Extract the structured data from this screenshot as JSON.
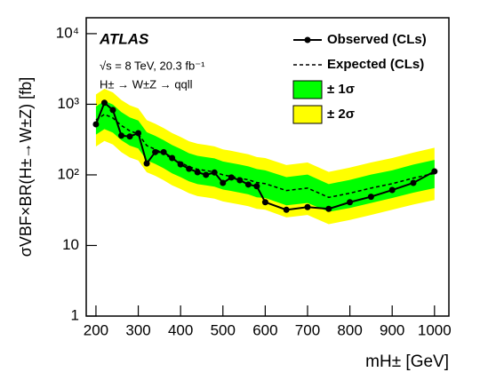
{
  "chart_data": {
    "type": "line",
    "annotations": [
      "ATLAS",
      "√s = 8 TeV,  20.3 fb⁻¹",
      "H± → W±Z → qqll"
    ],
    "xlabel": "mH± [GeV]",
    "ylabel": "σVBF×BR(H±→W±Z) [fb]",
    "log_y": true,
    "legend": "upper right",
    "x": [
      200,
      220,
      240,
      260,
      280,
      300,
      320,
      340,
      360,
      380,
      400,
      420,
      440,
      460,
      480,
      500,
      520,
      540,
      560,
      580,
      600,
      650,
      700,
      750,
      800,
      850,
      900,
      950,
      1000
    ],
    "series": [
      {
        "name": "Observed (CLs)",
        "color": "#000000",
        "dashed": false,
        "markers": true,
        "values": [
          520,
          1050,
          830,
          360,
          350,
          390,
          145,
          210,
          210,
          173,
          141,
          122,
          109,
          100,
          108,
          77,
          92,
          84,
          73,
          69,
          41,
          32,
          35,
          33,
          41,
          49,
          61,
          77,
          112
        ]
      },
      {
        "name": "Expected (CLs)",
        "color": "#000000",
        "dashed": true,
        "markers": false,
        "values": [
          600,
          720,
          640,
          500,
          420,
          380,
          260,
          230,
          200,
          170,
          150,
          130,
          120,
          115,
          110,
          100,
          95,
          90,
          85,
          78,
          75,
          60,
          65,
          48,
          55,
          65,
          75,
          90,
          105
        ]
      }
    ],
    "bands": [
      {
        "name": "± 2σ",
        "color": "#ffff00",
        "lower": [
          252,
          302,
          269,
          210,
          176,
          160,
          109,
          97,
          84,
          71,
          63,
          55,
          50,
          48,
          46,
          42,
          40,
          38,
          36,
          33,
          32,
          25,
          27,
          20,
          23,
          27,
          32,
          38,
          44
        ],
        "upper": [
          1380,
          1656,
          1472,
          1150,
          966,
          874,
          598,
          529,
          460,
          391,
          345,
          299,
          276,
          265,
          253,
          230,
          219,
          207,
          196,
          179,
          173,
          138,
          150,
          110,
          127,
          150,
          173,
          207,
          242
        ]
      },
      {
        "name": "± 1σ",
        "color": "#00ff00",
        "lower": [
          372,
          446,
          397,
          310,
          260,
          236,
          161,
          143,
          124,
          105,
          93,
          81,
          74,
          71,
          68,
          62,
          59,
          56,
          53,
          48,
          47,
          37,
          40,
          30,
          34,
          40,
          47,
          56,
          65
        ],
        "upper": [
          930,
          1116,
          992,
          775,
          651,
          589,
          403,
          357,
          310,
          264,
          233,
          202,
          186,
          178,
          171,
          155,
          147,
          140,
          132,
          121,
          116,
          93,
          101,
          74,
          85,
          101,
          116,
          140,
          163
        ]
      }
    ],
    "xlim": [
      177,
      1034
    ],
    "xticks": [
      200,
      300,
      400,
      500,
      600,
      700,
      800,
      900,
      1000
    ],
    "ylim": [
      1,
      16800
    ],
    "yticks": [
      1,
      10,
      {
        "value": 100,
        "label": "10²"
      },
      {
        "value": 1000,
        "label": "10³"
      },
      {
        "value": 10000,
        "label": "10⁴"
      }
    ]
  }
}
